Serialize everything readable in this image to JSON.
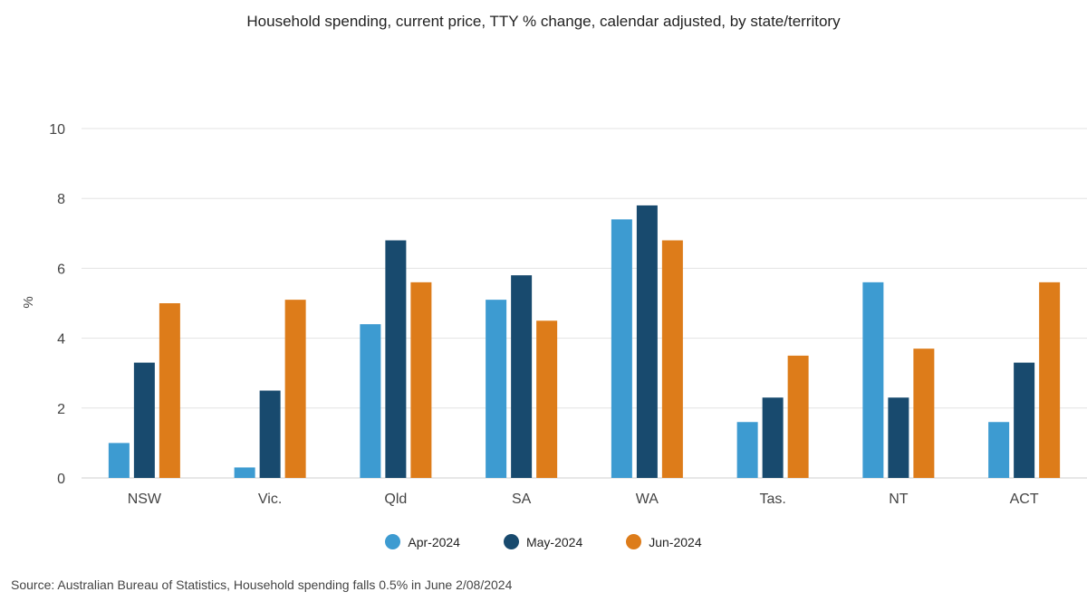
{
  "title": "Household spending, current price, TTY % change, calendar adjusted, by state/territory",
  "source": "Source: Australian Bureau of Statistics, Household spending falls 0.5% in June 2/08/2024",
  "colors": {
    "apr": "#3d9bd1",
    "may": "#184a6e",
    "jun": "#dd7c1a",
    "grid": "#e3e3e3",
    "axis_text": "#444444"
  },
  "chart_data": {
    "type": "bar",
    "categories": [
      "NSW",
      "Vic.",
      "Qld",
      "SA",
      "WA",
      "Tas.",
      "NT",
      "ACT"
    ],
    "series": [
      {
        "name": "Apr-2024",
        "values": [
          1.0,
          0.3,
          4.4,
          5.1,
          7.4,
          1.6,
          5.6,
          1.6
        ]
      },
      {
        "name": "May-2024",
        "values": [
          3.3,
          2.5,
          6.8,
          5.8,
          7.8,
          2.3,
          2.3,
          3.3
        ]
      },
      {
        "name": "Jun-2024",
        "values": [
          5.0,
          5.1,
          5.6,
          4.5,
          6.8,
          3.5,
          3.7,
          5.6
        ]
      }
    ],
    "ylabel": "%",
    "xlabel": "",
    "ylim": [
      0,
      10
    ],
    "yticks": [
      0,
      2,
      4,
      6,
      8,
      10
    ],
    "grid": true,
    "legend_position": "bottom"
  }
}
